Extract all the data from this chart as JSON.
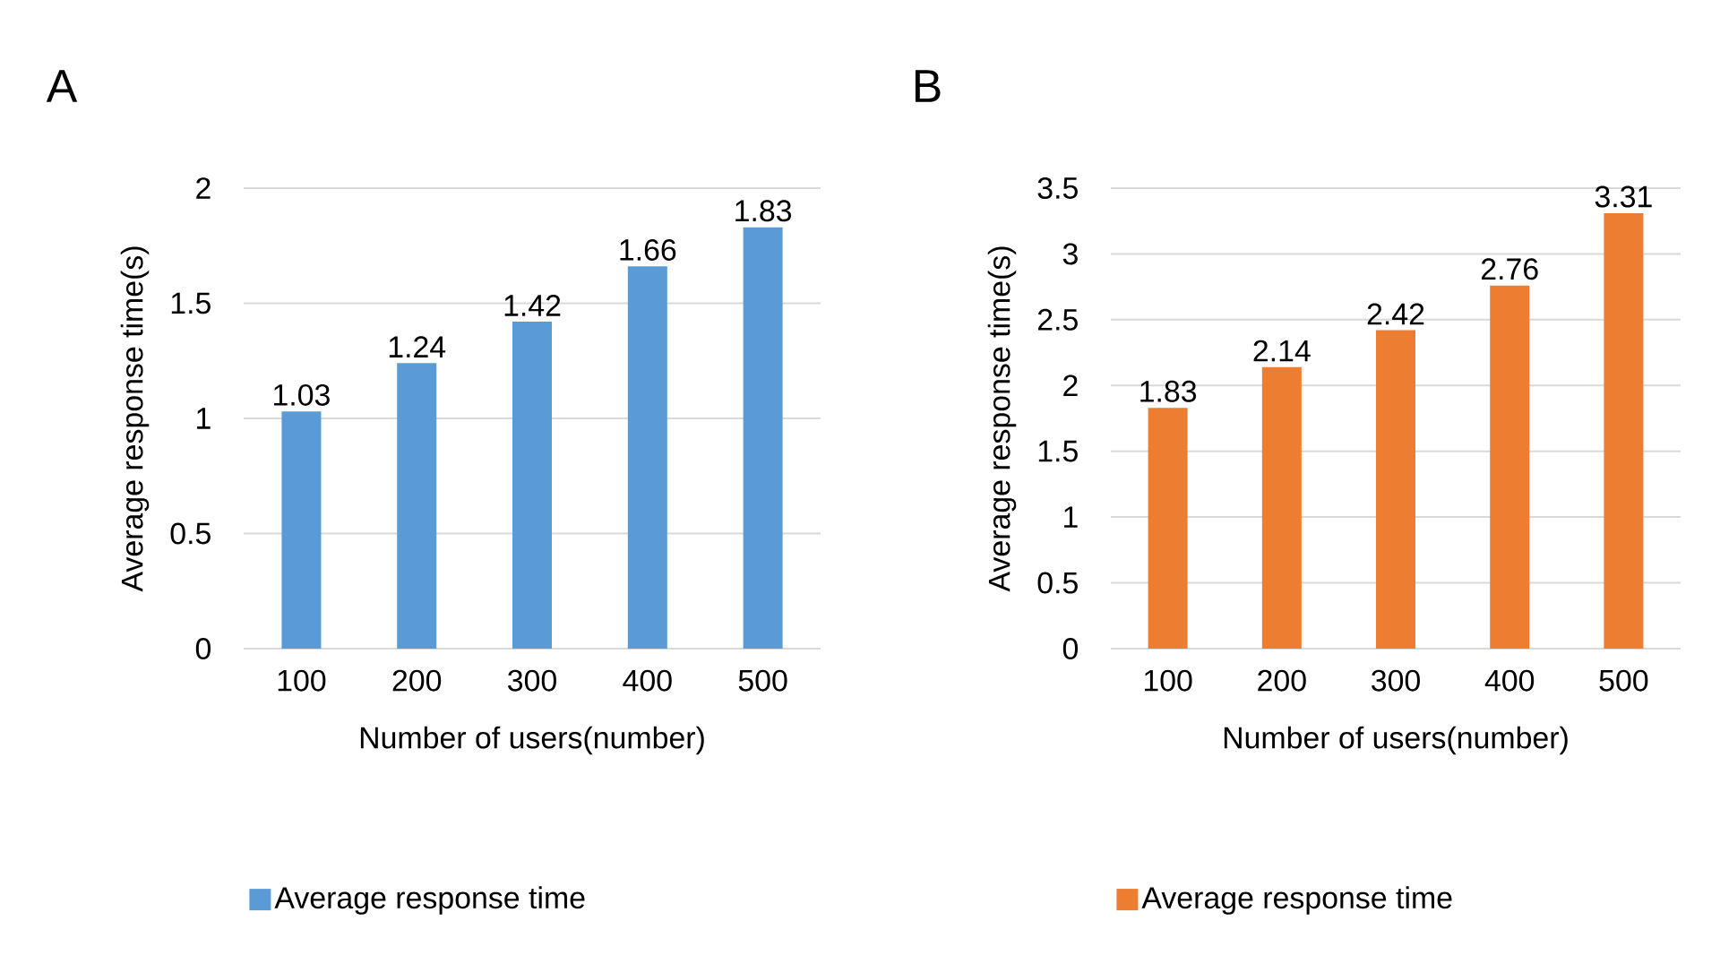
{
  "chart_data": [
    {
      "type": "bar",
      "title": "A",
      "xlabel": "Number of users(number)",
      "ylabel": "Average response time(s)",
      "categories": [
        "100",
        "200",
        "300",
        "400",
        "500"
      ],
      "series": [
        {
          "name": "Average response time",
          "color": "#5b9bd5",
          "values": [
            1.03,
            1.24,
            1.42,
            1.66,
            1.83
          ]
        }
      ],
      "ylim": [
        0,
        2
      ],
      "yticks": [
        0,
        0.5,
        1,
        1.5,
        2
      ],
      "grid": "y",
      "data_labels": true,
      "legend": "bottom"
    },
    {
      "type": "bar",
      "title": "B",
      "xlabel": "Number of users(number)",
      "ylabel": "Average response time(s)",
      "categories": [
        "100",
        "200",
        "300",
        "400",
        "500"
      ],
      "series": [
        {
          "name": "Average response time",
          "color": "#ed7d31",
          "values": [
            1.83,
            2.14,
            2.42,
            2.76,
            3.31
          ]
        }
      ],
      "ylim": [
        0,
        3.5
      ],
      "yticks": [
        0,
        0.5,
        1,
        1.5,
        2,
        2.5,
        3,
        3.5
      ],
      "grid": "y",
      "data_labels": true,
      "legend": "bottom"
    }
  ]
}
